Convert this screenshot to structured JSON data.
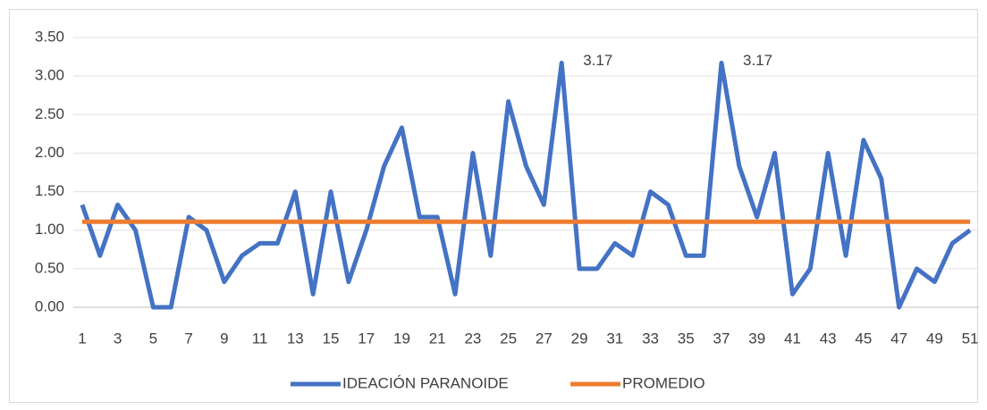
{
  "chart_data": {
    "type": "line",
    "categories": [
      1,
      null,
      3,
      null,
      5,
      null,
      7,
      null,
      9,
      null,
      11,
      null,
      13,
      null,
      15,
      null,
      17,
      null,
      19,
      null,
      21,
      null,
      23,
      null,
      25,
      null,
      27,
      null,
      29,
      null,
      31,
      null,
      33,
      null,
      35,
      null,
      37,
      null,
      39,
      null,
      41,
      null,
      43,
      null,
      45,
      null,
      47,
      null,
      49,
      null,
      51
    ],
    "series": [
      {
        "name": "IDEACIÓN PARANOIDE",
        "color": "#4472c4",
        "values": [
          1.33,
          0.67,
          1.33,
          1.0,
          0,
          0,
          1.17,
          1.0,
          0.33,
          0.67,
          0.83,
          0.83,
          1.5,
          0.17,
          1.5,
          0.33,
          1.0,
          1.83,
          2.33,
          1.17,
          1.17,
          0.17,
          2.0,
          0.67,
          2.67,
          1.83,
          1.33,
          3.17,
          0.5,
          0.5,
          0.83,
          0.67,
          1.5,
          1.33,
          0.67,
          0.67,
          3.17,
          1.83,
          1.17,
          2.0,
          0.17,
          0.5,
          2.0,
          0.67,
          2.17,
          1.67,
          0,
          0.5,
          0.33,
          0.83,
          1.0
        ],
        "value_labels": [
          null,
          null,
          null,
          null,
          null,
          null,
          null,
          null,
          null,
          null,
          null,
          null,
          null,
          null,
          null,
          null,
          null,
          null,
          null,
          null,
          null,
          null,
          null,
          null,
          null,
          null,
          null,
          "3.17",
          null,
          null,
          null,
          null,
          null,
          null,
          null,
          null,
          "3.17",
          null,
          null,
          null,
          null,
          null,
          null,
          null,
          null,
          null,
          null,
          null,
          null,
          null,
          null
        ]
      },
      {
        "name": "PROMEDIO",
        "color": "#ed7d31",
        "values": [
          1.11,
          1.11,
          1.11,
          1.11,
          1.11,
          1.11,
          1.11,
          1.11,
          1.11,
          1.11,
          1.11,
          1.11,
          1.11,
          1.11,
          1.11,
          1.11,
          1.11,
          1.11,
          1.11,
          1.11,
          1.11,
          1.11,
          1.11,
          1.11,
          1.11,
          1.11,
          1.11,
          1.11,
          1.11,
          1.11,
          1.11,
          1.11,
          1.11,
          1.11,
          1.11,
          1.11,
          1.11,
          1.11,
          1.11,
          1.11,
          1.11,
          1.11,
          1.11,
          1.11,
          1.11,
          1.11,
          1.11,
          1.11,
          1.11,
          1.11,
          1.11
        ]
      }
    ],
    "ylim": [
      0,
      3.5
    ],
    "yticks": [
      {
        "value": 0,
        "label": "0.00"
      },
      {
        "value": 0.5,
        "label": "0.50"
      },
      {
        "value": 1,
        "label": "1.00"
      },
      {
        "value": 1.5,
        "label": "1.50"
      },
      {
        "value": 2,
        "label": "2.00"
      },
      {
        "value": 2.5,
        "label": "2.50"
      },
      {
        "value": 3,
        "label": "3.00"
      },
      {
        "value": 3.5,
        "label": "3.50"
      }
    ],
    "grid": true,
    "legend": "bottom"
  }
}
